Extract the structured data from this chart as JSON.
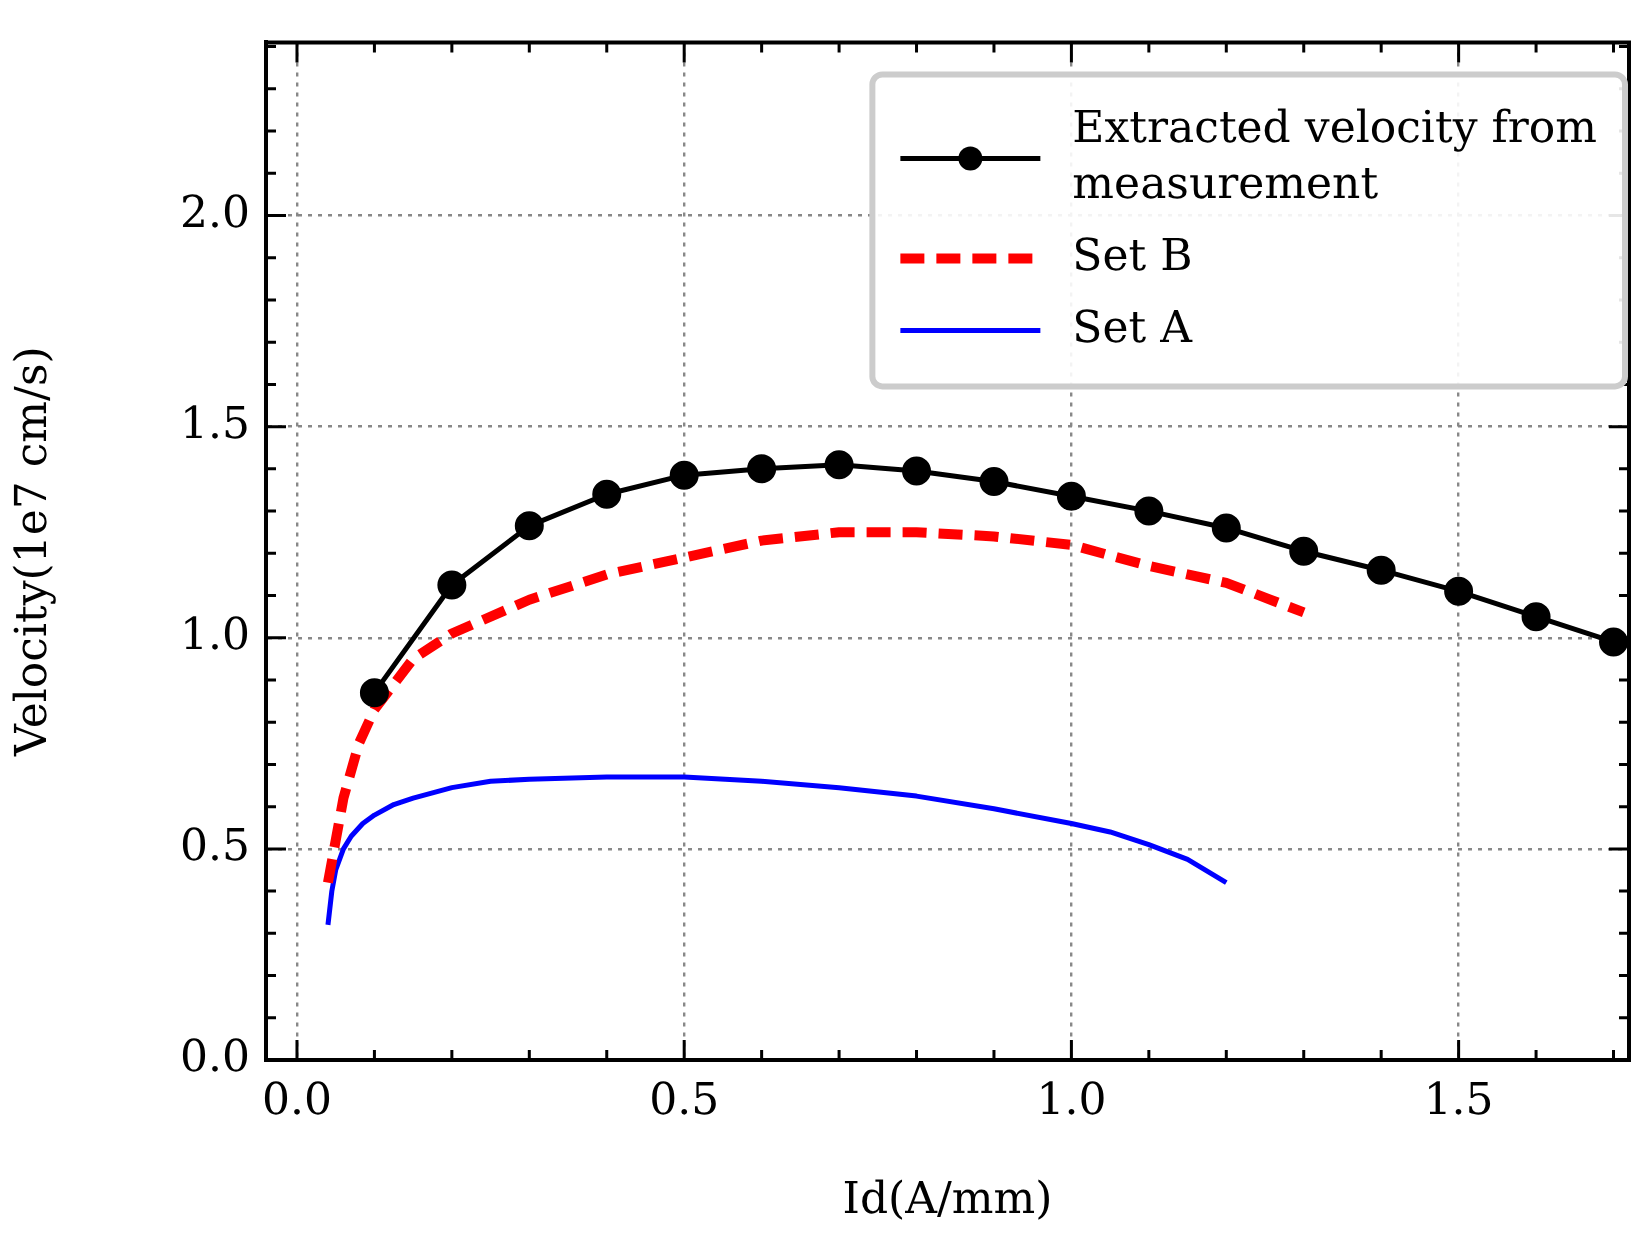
{
  "chart_data": {
    "type": "line",
    "xlabel": "Id(A/mm)",
    "ylabel": "Velocity(1e7 cm/s)",
    "xlim": [
      -0.04,
      1.72
    ],
    "ylim": [
      0,
      2.41
    ],
    "xticks": [
      {
        "value": 0,
        "label": "0.0"
      },
      {
        "value": 0.1,
        "label": null
      },
      {
        "value": 0.2,
        "label": null
      },
      {
        "value": 0.3,
        "label": null
      },
      {
        "value": 0.4,
        "label": null
      },
      0.5,
      {
        "value": 0.6,
        "label": null
      },
      {
        "value": 0.7,
        "label": null
      },
      {
        "value": 0.8,
        "label": null
      },
      {
        "value": 0.9,
        "label": null
      },
      {
        "value": 1,
        "label": "1.0"
      },
      {
        "value": 1.1,
        "label": null
      },
      {
        "value": 1.2,
        "label": null
      },
      {
        "value": 1.3,
        "label": null
      },
      {
        "value": 1.4,
        "label": null
      },
      1.5,
      {
        "value": 1.6,
        "label": null
      },
      {
        "value": 1.7,
        "label": null
      }
    ],
    "yticks": [
      {
        "value": 0,
        "label": "0.0"
      },
      {
        "value": 0.1,
        "label": null
      },
      {
        "value": 0.2,
        "label": null
      },
      {
        "value": 0.3,
        "label": null
      },
      {
        "value": 0.4,
        "label": null
      },
      0.5,
      {
        "value": 0.6,
        "label": null
      },
      {
        "value": 0.7,
        "label": null
      },
      {
        "value": 0.8,
        "label": null
      },
      {
        "value": 0.9,
        "label": null
      },
      {
        "value": 1,
        "label": "1.0"
      },
      {
        "value": 1.1,
        "label": null
      },
      {
        "value": 1.2,
        "label": null
      },
      {
        "value": 1.3,
        "label": null
      },
      {
        "value": 1.4,
        "label": null
      },
      1.5,
      {
        "value": 1.6,
        "label": null
      },
      {
        "value": 1.7,
        "label": null
      },
      {
        "value": 1.8,
        "label": null
      },
      {
        "value": 1.9,
        "label": null
      },
      {
        "value": 2,
        "label": "2.0"
      },
      {
        "value": 2.1,
        "label": null
      },
      {
        "value": 2.2,
        "label": null
      },
      {
        "value": 2.3,
        "label": null
      },
      {
        "value": 2.4,
        "label": null
      }
    ],
    "grid": true,
    "legend": "top right",
    "series": [
      {
        "name": "Extracted velocity from measurement",
        "color": "#000000",
        "marker": "circle",
        "line_style": "solid",
        "x": [
          0.1,
          0.2,
          0.3,
          0.4,
          0.5,
          0.6,
          0.7,
          0.8,
          0.9,
          1.0,
          1.1,
          1.2,
          1.3,
          1.4,
          1.5,
          1.6,
          1.7
        ],
        "values": [
          0.87,
          1.125,
          1.265,
          1.34,
          1.385,
          1.4,
          1.41,
          1.395,
          1.37,
          1.335,
          1.3,
          1.26,
          1.205,
          1.16,
          1.11,
          1.05,
          0.99
        ]
      },
      {
        "name": "Set B",
        "color": "#ff0000",
        "marker": "none",
        "line_style": "dashed",
        "x": [
          0.04,
          0.06,
          0.08,
          0.1,
          0.15,
          0.2,
          0.3,
          0.4,
          0.5,
          0.6,
          0.7,
          0.8,
          0.9,
          1.0,
          1.1,
          1.2,
          1.3
        ],
        "values": [
          0.42,
          0.62,
          0.75,
          0.83,
          0.95,
          1.01,
          1.09,
          1.15,
          1.19,
          1.23,
          1.25,
          1.25,
          1.24,
          1.22,
          1.17,
          1.13,
          1.06
        ]
      },
      {
        "name": "Set A",
        "color": "#0000ff",
        "marker": "none",
        "line_style": "solid",
        "x": [
          0.04,
          0.045,
          0.05,
          0.06,
          0.07,
          0.085,
          0.1,
          0.125,
          0.15,
          0.2,
          0.25,
          0.3,
          0.4,
          0.5,
          0.6,
          0.7,
          0.8,
          0.9,
          1.0,
          1.05,
          1.1,
          1.15,
          1.2
        ],
        "values": [
          0.32,
          0.4,
          0.45,
          0.5,
          0.53,
          0.56,
          0.58,
          0.605,
          0.62,
          0.645,
          0.66,
          0.665,
          0.67,
          0.67,
          0.66,
          0.645,
          0.625,
          0.595,
          0.56,
          0.54,
          0.51,
          0.475,
          0.42
        ]
      }
    ]
  }
}
